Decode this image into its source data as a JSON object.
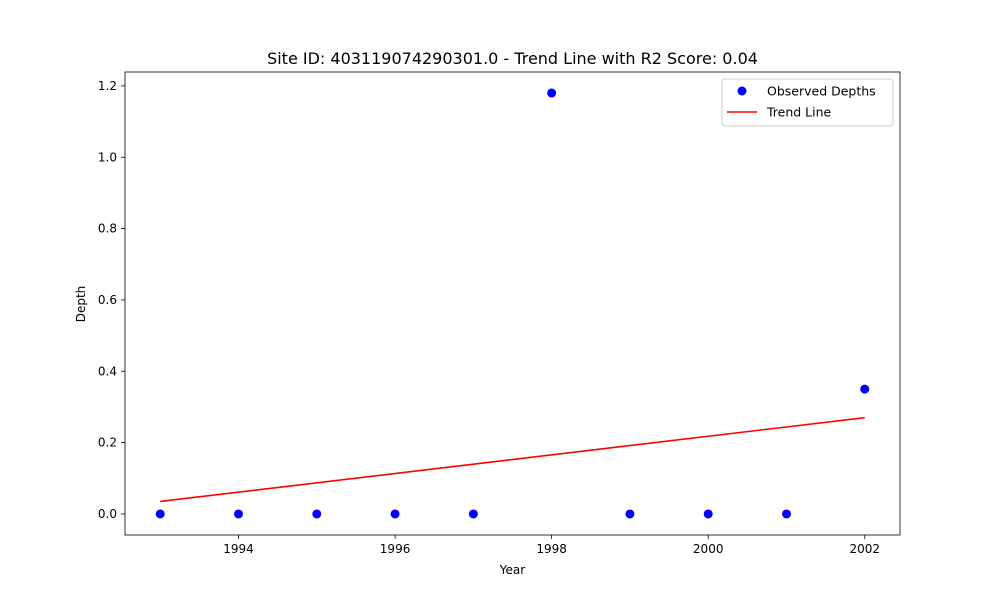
{
  "chart_data": {
    "type": "scatter",
    "title": "Site ID: 403119074290301.0 - Trend Line with R2 Score: 0.04",
    "xlabel": "Year",
    "ylabel": "Depth",
    "xlim": [
      1992.55,
      2002.45
    ],
    "ylim": [
      -0.059,
      1.239
    ],
    "x_ticks": [
      1994,
      1996,
      1998,
      2000,
      2002
    ],
    "y_ticks": [
      0.0,
      0.2,
      0.4,
      0.6,
      0.8,
      1.0,
      1.2
    ],
    "grid": false,
    "legend_position": "upper-right",
    "series": [
      {
        "name": "Observed Depths",
        "kind": "scatter",
        "color": "#0000ff",
        "x": [
          1993,
          1994,
          1995,
          1996,
          1997,
          1998,
          1999,
          2000,
          2001,
          2002
        ],
        "y": [
          0.0,
          0.0,
          0.0,
          0.0,
          0.0,
          1.18,
          0.0,
          0.0,
          0.0,
          0.35
        ]
      },
      {
        "name": "Trend Line",
        "kind": "line",
        "color": "#ff0000",
        "x": [
          1993,
          2002
        ],
        "y": [
          0.035,
          0.27
        ]
      }
    ]
  }
}
